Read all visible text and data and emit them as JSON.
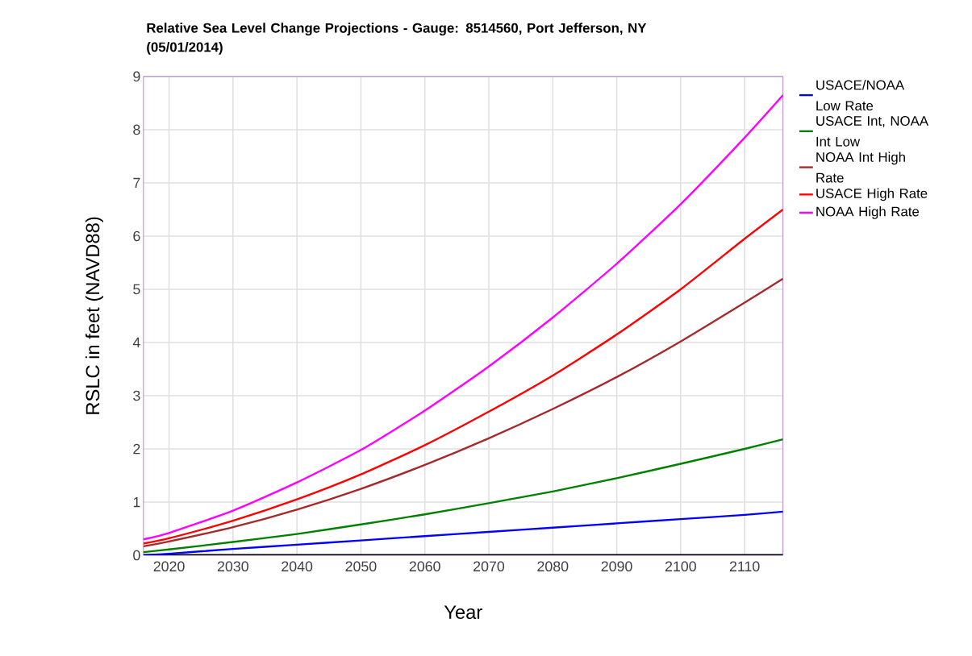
{
  "chart_data": {
    "type": "line",
    "title": "Relative Sea Level Change Projections - Gauge: 8514560, Port Jefferson, NY (05/01/2014)",
    "xlabel": "Year",
    "ylabel": "RSLC in feet (NAVD88)",
    "x": [
      2016,
      2020,
      2030,
      2040,
      2050,
      2060,
      2070,
      2080,
      2090,
      2100,
      2110,
      2116
    ],
    "series": [
      {
        "name": "USACE/NOAA Low Rate",
        "color": "#0000ff",
        "values": [
          0.0,
          0.03,
          0.12,
          0.2,
          0.28,
          0.36,
          0.44,
          0.52,
          0.6,
          0.68,
          0.76,
          0.82
        ]
      },
      {
        "name": "USACE Int, NOAA Int Low",
        "color": "#008000",
        "values": [
          0.06,
          0.11,
          0.25,
          0.4,
          0.58,
          0.77,
          0.98,
          1.2,
          1.45,
          1.72,
          2.0,
          2.18
        ]
      },
      {
        "name": "NOAA Int High Rate",
        "color": "#a52a2a",
        "values": [
          0.17,
          0.26,
          0.53,
          0.86,
          1.25,
          1.7,
          2.2,
          2.75,
          3.35,
          4.02,
          4.75,
          5.2
        ]
      },
      {
        "name": "USACE High Rate",
        "color": "#ff0000",
        "values": [
          0.22,
          0.32,
          0.65,
          1.05,
          1.52,
          2.07,
          2.7,
          3.38,
          4.15,
          5.0,
          5.95,
          6.5
        ]
      },
      {
        "name": "NOAA High Rate",
        "color": "#ff00ff",
        "values": [
          0.3,
          0.42,
          0.84,
          1.37,
          1.98,
          2.72,
          3.55,
          4.47,
          5.48,
          6.6,
          7.85,
          8.65
        ]
      }
    ],
    "xlim": [
      2016,
      2116
    ],
    "ylim": [
      0,
      9
    ],
    "xticks": [
      2020,
      2030,
      2040,
      2050,
      2060,
      2070,
      2080,
      2090,
      2100,
      2110
    ],
    "yticks": [
      0,
      1,
      2,
      3,
      4,
      5,
      6,
      7,
      8,
      9
    ],
    "grid": true,
    "legend": "right",
    "marker": "none"
  }
}
